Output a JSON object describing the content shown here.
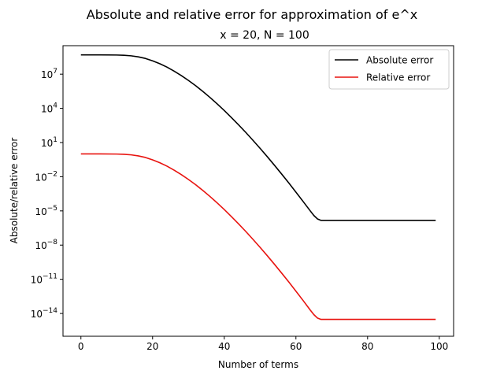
{
  "chart_data": {
    "type": "line",
    "title": "Absolute and relative error for approximation of e^x",
    "subtitle": "x = 20, N = 100",
    "xlabel": "Number of terms",
    "ylabel": "Absolute/relative error",
    "xlim": [
      -5,
      104
    ],
    "ylim_log10": [
      -16.0,
      9.5
    ],
    "yscale": "log",
    "grid": false,
    "legend_position": "top-right",
    "x_ticks": [
      "0",
      "20",
      "40",
      "60",
      "80",
      "100"
    ],
    "y_ticks": [
      "10^7",
      "10^4",
      "10^1",
      "10^-2",
      "10^-5",
      "10^-8",
      "10^-11",
      "10^-14"
    ],
    "series": [
      {
        "name": "Absolute error",
        "color": "#000000",
        "x": [
          0,
          5,
          10,
          12,
          14,
          16,
          18,
          20,
          22,
          24,
          26,
          28,
          30,
          32,
          34,
          36,
          38,
          40,
          42,
          44,
          46,
          48,
          50,
          52,
          54,
          56,
          58,
          60,
          62,
          64,
          65,
          66,
          67,
          70,
          80,
          90,
          99
        ],
        "log10_y": [
          8.69,
          8.69,
          8.68,
          8.66,
          8.61,
          8.52,
          8.38,
          8.17,
          7.92,
          7.62,
          7.27,
          6.88,
          6.45,
          5.99,
          5.49,
          4.96,
          4.4,
          3.81,
          3.19,
          2.55,
          1.89,
          1.2,
          0.49,
          -0.24,
          -0.99,
          -1.76,
          -2.54,
          -3.35,
          -4.17,
          -5.0,
          -5.4,
          -5.7,
          -5.83,
          -5.83,
          -5.83,
          -5.83,
          -5.83
        ]
      },
      {
        "name": "Relative error",
        "color": "#e8130f",
        "x": [
          0,
          5,
          10,
          12,
          14,
          16,
          18,
          20,
          22,
          24,
          26,
          28,
          30,
          32,
          34,
          36,
          38,
          40,
          42,
          44,
          46,
          48,
          50,
          52,
          54,
          56,
          58,
          60,
          62,
          64,
          65,
          66,
          67,
          70,
          80,
          90,
          99
        ],
        "log10_y": [
          0.0,
          0.0,
          -0.01,
          -0.03,
          -0.08,
          -0.17,
          -0.31,
          -0.52,
          -0.77,
          -1.07,
          -1.42,
          -1.81,
          -2.24,
          -2.7,
          -3.2,
          -3.73,
          -4.29,
          -4.88,
          -5.5,
          -6.14,
          -6.8,
          -7.49,
          -8.2,
          -8.93,
          -9.68,
          -10.45,
          -11.23,
          -12.04,
          -12.86,
          -13.7,
          -14.1,
          -14.4,
          -14.52,
          -14.52,
          -14.52,
          -14.52,
          -14.52
        ]
      }
    ]
  }
}
